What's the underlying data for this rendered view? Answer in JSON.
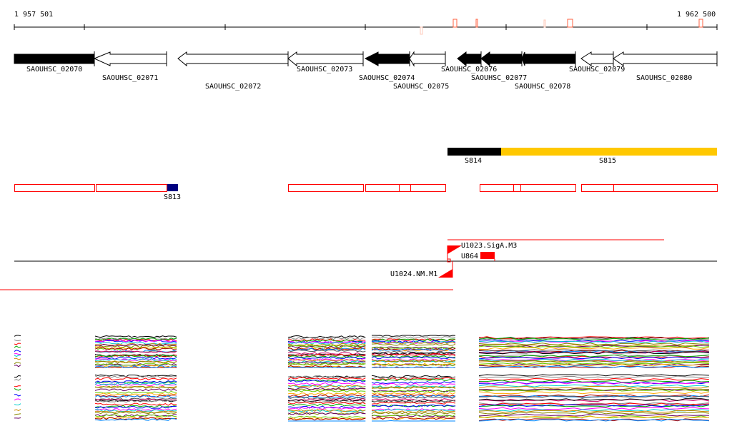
{
  "ruler": {
    "start_label": "1 957 501",
    "end_label": "1 962 500"
  },
  "genes": [
    {
      "name": "SAOUHSC_02070",
      "strand": "-",
      "filled": true
    },
    {
      "name": "SAOUHSC_02071",
      "strand": "-",
      "filled": false
    },
    {
      "name": "SAOUHSC_02072",
      "strand": "-",
      "filled": false
    },
    {
      "name": "SAOUHSC_02073",
      "strand": "-",
      "filled": false
    },
    {
      "name": "SAOUHSC_02074",
      "strand": "-",
      "filled": true
    },
    {
      "name": "SAOUHSC_02075",
      "strand": "-",
      "filled": false
    },
    {
      "name": "SAOUHSC_02076",
      "strand": "-",
      "filled": true
    },
    {
      "name": "SAOUHSC_02077",
      "strand": "-",
      "filled": true
    },
    {
      "name": "SAOUHSC_02078",
      "strand": "-",
      "filled": true
    },
    {
      "name": "SAOUHSC_02079",
      "strand": "-",
      "filled": false
    },
    {
      "name": "SAOUHSC_02080",
      "strand": "-",
      "filled": false
    }
  ],
  "segments": [
    {
      "name": "S814",
      "color": "#000000"
    },
    {
      "name": "S815",
      "color": "#ffc800"
    },
    {
      "name": "S813",
      "color": "#000080"
    }
  ],
  "features": [
    {
      "name": "U1023.SigA.M3"
    },
    {
      "name": "U864"
    },
    {
      "name": "U1024.NM.M1"
    }
  ],
  "colors": {
    "outline": "#ff0000",
    "marker": "#ff6040",
    "marker_light": "#ffc8b8"
  }
}
